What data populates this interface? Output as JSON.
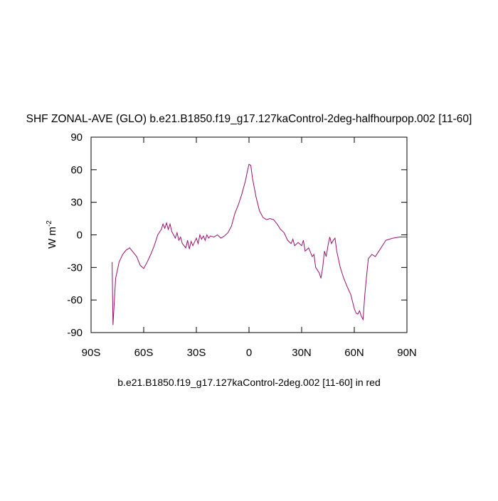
{
  "chart_data": {
    "type": "line",
    "title": "SHF ZONAL-AVE (GLO) b.e21.B1850.f19_g17.127kaControl-2deg-halfhourpop.002 [11-60]",
    "ylabel": {
      "base": "W m",
      "sup": "-2"
    },
    "caption": "b.e21.B1850.f19_g17.127kaControl-2deg.002 [11-60] in red",
    "x": [
      -78,
      -77.5,
      -76,
      -74,
      -72,
      -70,
      -68,
      -66,
      -64,
      -62,
      -60,
      -58,
      -56,
      -54,
      -52,
      -50,
      -49,
      -48,
      -47,
      -46,
      -45,
      -44,
      -42,
      -41,
      -40,
      -39,
      -38,
      -36,
      -35,
      -34,
      -33,
      -32,
      -30,
      -29,
      -28,
      -27,
      -26,
      -25,
      -24,
      -23,
      -22,
      -20,
      -18,
      -16,
      -14,
      -12,
      -10,
      -8,
      -6,
      -4,
      -2,
      -1,
      0,
      1,
      2,
      4,
      6,
      8,
      10,
      12,
      14,
      16,
      18,
      20,
      22,
      24,
      25,
      26,
      28,
      30,
      31,
      32,
      34,
      36,
      37,
      38,
      40,
      41,
      42,
      43,
      44,
      45,
      46,
      47,
      48,
      49,
      50,
      52,
      54,
      56,
      58,
      60,
      61,
      62,
      63,
      64,
      65,
      66,
      67,
      68,
      70,
      72,
      74,
      76,
      78,
      80,
      82,
      86,
      90
    ],
    "series": [
      {
        "color": "#9b0f6f",
        "values": [
          -25,
          -83,
          -40,
          -25,
          -18,
          -14,
          -12,
          -16,
          -20,
          -28,
          -31,
          -25,
          -18,
          -10,
          0,
          5,
          10,
          6,
          11,
          5,
          10,
          3,
          -3,
          2,
          -5,
          -2,
          -8,
          -12,
          -5,
          -13,
          -6,
          -10,
          -3,
          -8,
          0,
          -4,
          -1,
          -5,
          0,
          -3,
          -1,
          -2,
          0,
          -3,
          -1,
          2,
          8,
          20,
          28,
          38,
          50,
          58,
          65,
          64,
          52,
          35,
          22,
          16,
          14,
          15,
          14,
          10,
          5,
          2,
          -5,
          -8,
          -4,
          -10,
          -7,
          -10,
          -5,
          -15,
          -12,
          -20,
          -18,
          -30,
          -35,
          -40,
          -30,
          -15,
          -20,
          -10,
          -2,
          -8,
          -5,
          -3,
          -15,
          -30,
          -40,
          -48,
          -55,
          -68,
          -72,
          -73,
          -70,
          -75,
          -78,
          -55,
          -38,
          -22,
          -18,
          -20,
          -15,
          -10,
          -5,
          -4,
          -3,
          -2,
          -2
        ]
      }
    ],
    "xlim": [
      -90,
      90
    ],
    "xticks": [
      {
        "value": -90,
        "label": "90S"
      },
      {
        "value": -60,
        "label": "60S"
      },
      {
        "value": -30,
        "label": "30S"
      },
      0,
      {
        "value": 30,
        "label": "30N"
      },
      {
        "value": 60,
        "label": "60N"
      },
      {
        "value": 90,
        "label": "90N"
      }
    ],
    "ylim": [
      -90,
      90
    ],
    "yticks": [
      -90,
      -60,
      -30,
      0,
      30,
      60,
      90
    ]
  }
}
